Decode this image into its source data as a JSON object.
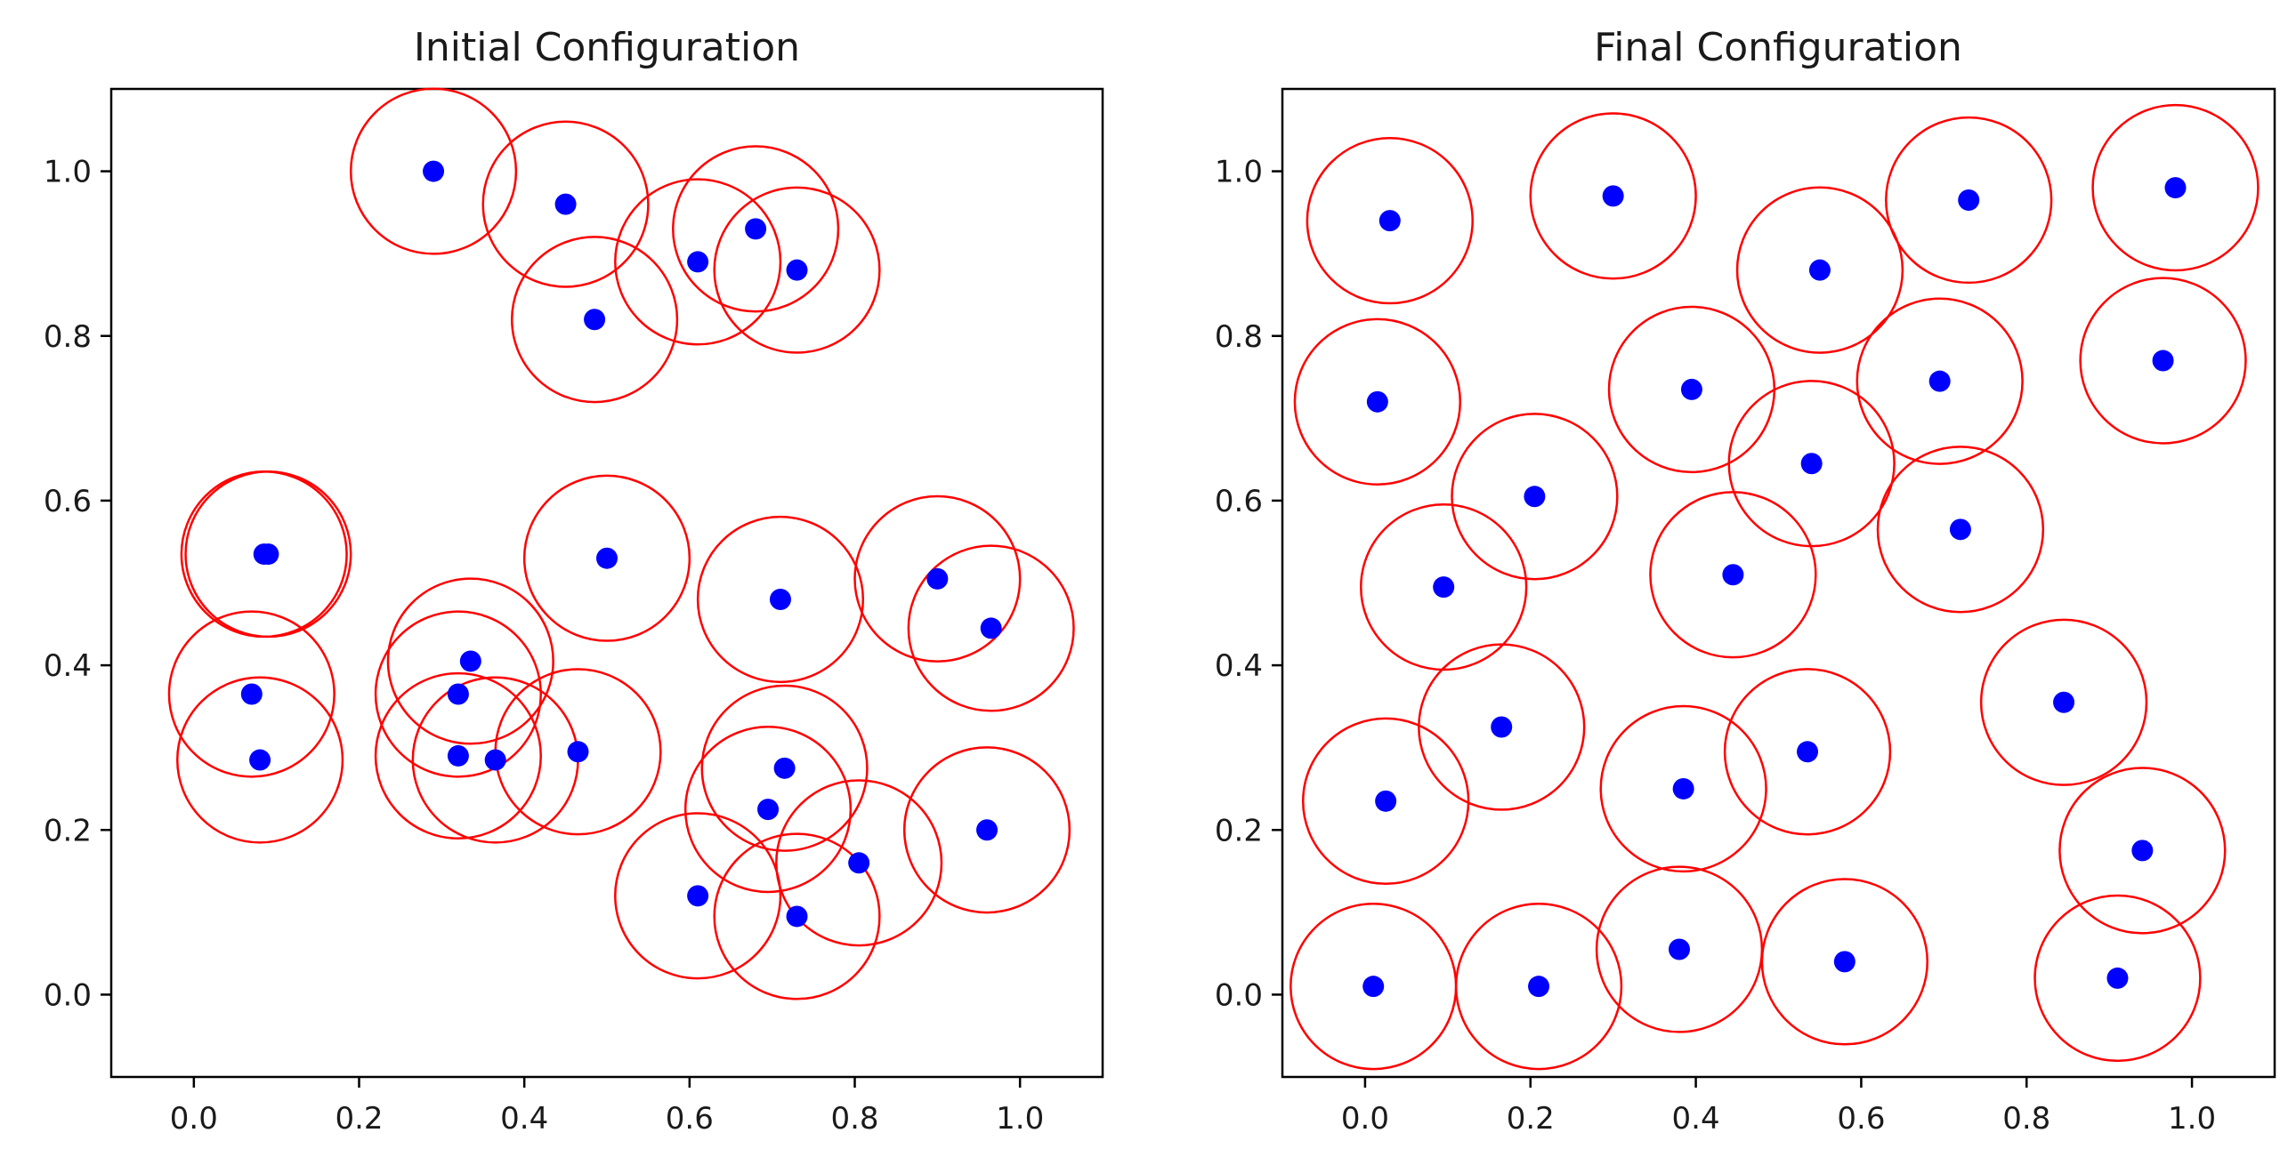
{
  "colors": {
    "point": "#0000ff",
    "circle": "#ff0000",
    "axes": "#000000",
    "background": "#ffffff"
  },
  "chart_data": [
    {
      "type": "scatter",
      "title": "Initial Configuration",
      "xlabel": "",
      "ylabel": "",
      "xlim": [
        -0.1,
        1.1
      ],
      "ylim": [
        -0.1,
        1.1
      ],
      "xticks": [
        "0.0",
        "0.2",
        "0.4",
        "0.6",
        "0.8",
        "1.0"
      ],
      "yticks": [
        "0.0",
        "0.2",
        "0.4",
        "0.6",
        "0.8",
        "1.0"
      ],
      "circle_radius": 0.1,
      "points": [
        {
          "x": 0.29,
          "y": 1.0
        },
        {
          "x": 0.45,
          "y": 0.96
        },
        {
          "x": 0.485,
          "y": 0.82
        },
        {
          "x": 0.61,
          "y": 0.89
        },
        {
          "x": 0.68,
          "y": 0.93
        },
        {
          "x": 0.73,
          "y": 0.88
        },
        {
          "x": 0.085,
          "y": 0.535
        },
        {
          "x": 0.09,
          "y": 0.535
        },
        {
          "x": 0.5,
          "y": 0.53
        },
        {
          "x": 0.71,
          "y": 0.48
        },
        {
          "x": 0.9,
          "y": 0.505
        },
        {
          "x": 0.965,
          "y": 0.445
        },
        {
          "x": 0.07,
          "y": 0.365
        },
        {
          "x": 0.08,
          "y": 0.285
        },
        {
          "x": 0.335,
          "y": 0.405
        },
        {
          "x": 0.32,
          "y": 0.365
        },
        {
          "x": 0.32,
          "y": 0.29
        },
        {
          "x": 0.365,
          "y": 0.285
        },
        {
          "x": 0.465,
          "y": 0.295
        },
        {
          "x": 0.715,
          "y": 0.275
        },
        {
          "x": 0.695,
          "y": 0.225
        },
        {
          "x": 0.61,
          "y": 0.12
        },
        {
          "x": 0.73,
          "y": 0.095
        },
        {
          "x": 0.805,
          "y": 0.16
        },
        {
          "x": 0.96,
          "y": 0.2
        }
      ]
    },
    {
      "type": "scatter",
      "title": "Final Configuration",
      "xlabel": "",
      "ylabel": "",
      "xlim": [
        -0.1,
        1.1
      ],
      "ylim": [
        -0.1,
        1.1
      ],
      "xticks": [
        "0.0",
        "0.2",
        "0.4",
        "0.6",
        "0.8",
        "1.0"
      ],
      "yticks": [
        "0.0",
        "0.2",
        "0.4",
        "0.6",
        "0.8",
        "1.0"
      ],
      "circle_radius": 0.1,
      "points": [
        {
          "x": 0.03,
          "y": 0.94
        },
        {
          "x": 0.3,
          "y": 0.97
        },
        {
          "x": 0.55,
          "y": 0.88
        },
        {
          "x": 0.73,
          "y": 0.965
        },
        {
          "x": 0.98,
          "y": 0.98
        },
        {
          "x": 0.015,
          "y": 0.72
        },
        {
          "x": 0.395,
          "y": 0.735
        },
        {
          "x": 0.695,
          "y": 0.745
        },
        {
          "x": 0.965,
          "y": 0.77
        },
        {
          "x": 0.54,
          "y": 0.645
        },
        {
          "x": 0.205,
          "y": 0.605
        },
        {
          "x": 0.72,
          "y": 0.565
        },
        {
          "x": 0.095,
          "y": 0.495
        },
        {
          "x": 0.445,
          "y": 0.51
        },
        {
          "x": 0.845,
          "y": 0.355
        },
        {
          "x": 0.165,
          "y": 0.325
        },
        {
          "x": 0.535,
          "y": 0.295
        },
        {
          "x": 0.385,
          "y": 0.25
        },
        {
          "x": 0.025,
          "y": 0.235
        },
        {
          "x": 0.94,
          "y": 0.175
        },
        {
          "x": 0.38,
          "y": 0.055
        },
        {
          "x": 0.58,
          "y": 0.04
        },
        {
          "x": 0.91,
          "y": 0.02
        },
        {
          "x": 0.01,
          "y": 0.01
        },
        {
          "x": 0.21,
          "y": 0.01
        }
      ]
    }
  ]
}
